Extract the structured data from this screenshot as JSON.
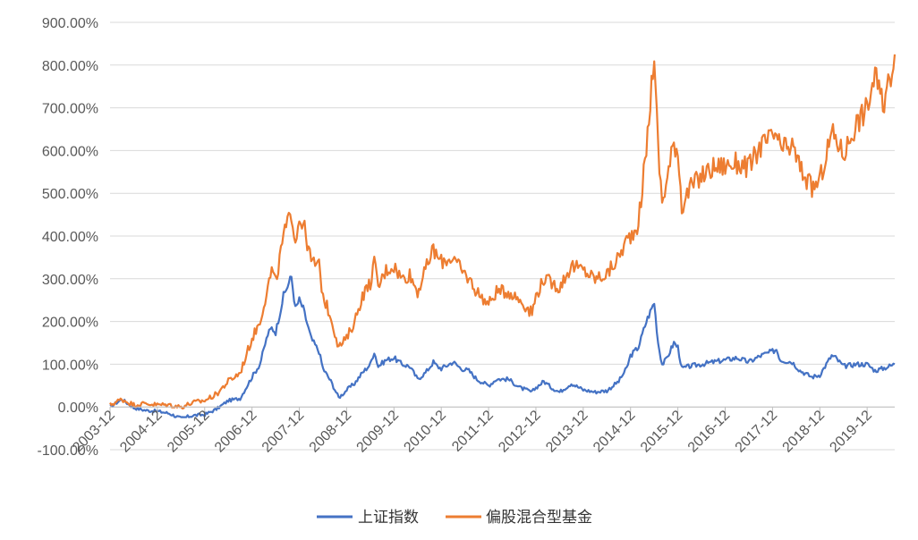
{
  "chart_data": {
    "type": "line",
    "title": "",
    "xlabel": "",
    "ylabel": "",
    "ylim": [
      -100,
      900
    ],
    "y_ticks": [
      "900.00%",
      "800.00%",
      "700.00%",
      "600.00%",
      "500.00%",
      "400.00%",
      "300.00%",
      "200.00%",
      "100.00%",
      "0.00%",
      "-100.00%"
    ],
    "x_ticks": [
      "2003-12",
      "2004-12",
      "2005-12",
      "2006-12",
      "2007-12",
      "2008-12",
      "2009-12",
      "2010-12",
      "2011-12",
      "2012-12",
      "2013-12",
      "2014-12",
      "2015-12",
      "2016-12",
      "2017-12",
      "2018-12",
      "2019-12"
    ],
    "x_range": [
      "2003-12",
      "2020-07"
    ],
    "grid": "horizontal",
    "legend_position": "bottom",
    "series": [
      {
        "name": "上证指数",
        "color": "#4472C4",
        "points": [
          [
            "2003-12",
            0
          ],
          [
            "2004-03",
            18
          ],
          [
            "2004-06",
            -2
          ],
          [
            "2004-09",
            -8
          ],
          [
            "2004-12",
            -10
          ],
          [
            "2005-03",
            -15
          ],
          [
            "2005-06",
            -27
          ],
          [
            "2005-09",
            -20
          ],
          [
            "2005-12",
            -18
          ],
          [
            "2006-03",
            -5
          ],
          [
            "2006-06",
            15
          ],
          [
            "2006-09",
            20
          ],
          [
            "2006-12",
            70
          ],
          [
            "2007-02",
            100
          ],
          [
            "2007-04",
            170
          ],
          [
            "2007-05",
            185
          ],
          [
            "2007-06",
            175
          ],
          [
            "2007-08",
            260
          ],
          [
            "2007-10",
            305
          ],
          [
            "2007-11",
            230
          ],
          [
            "2007-12",
            250
          ],
          [
            "2008-01",
            230
          ],
          [
            "2008-03",
            160
          ],
          [
            "2008-05",
            130
          ],
          [
            "2008-06",
            90
          ],
          [
            "2008-08",
            60
          ],
          [
            "2008-10",
            22
          ],
          [
            "2008-11",
            30
          ],
          [
            "2008-12",
            40
          ],
          [
            "2009-02",
            55
          ],
          [
            "2009-04",
            80
          ],
          [
            "2009-06",
            100
          ],
          [
            "2009-07",
            130
          ],
          [
            "2009-08",
            95
          ],
          [
            "2009-10",
            110
          ],
          [
            "2009-12",
            115
          ],
          [
            "2010-02",
            100
          ],
          [
            "2010-04",
            95
          ],
          [
            "2010-06",
            65
          ],
          [
            "2010-08",
            80
          ],
          [
            "2010-10",
            105
          ],
          [
            "2010-11",
            95
          ],
          [
            "2010-12",
            90
          ],
          [
            "2011-03",
            105
          ],
          [
            "2011-05",
            90
          ],
          [
            "2011-07",
            85
          ],
          [
            "2011-09",
            65
          ],
          [
            "2011-12",
            50
          ],
          [
            "2012-02",
            65
          ],
          [
            "2012-05",
            65
          ],
          [
            "2012-08",
            45
          ],
          [
            "2012-11",
            35
          ],
          [
            "2012-12",
            45
          ],
          [
            "2013-02",
            60
          ],
          [
            "2013-04",
            45
          ],
          [
            "2013-06",
            35
          ],
          [
            "2013-09",
            55
          ],
          [
            "2013-12",
            40
          ],
          [
            "2014-03",
            35
          ],
          [
            "2014-06",
            38
          ],
          [
            "2014-09",
            60
          ],
          [
            "2014-11",
            90
          ],
          [
            "2014-12",
            120
          ],
          [
            "2015-02",
            140
          ],
          [
            "2015-04",
            200
          ],
          [
            "2015-06",
            245
          ],
          [
            "2015-07",
            150
          ],
          [
            "2015-08",
            100
          ],
          [
            "2015-09",
            110
          ],
          [
            "2015-11",
            150
          ],
          [
            "2015-12",
            140
          ],
          [
            "2016-01",
            90
          ],
          [
            "2016-03",
            95
          ],
          [
            "2016-06",
            100
          ],
          [
            "2016-09",
            105
          ],
          [
            "2016-12",
            110
          ],
          [
            "2017-03",
            115
          ],
          [
            "2017-06",
            105
          ],
          [
            "2017-09",
            120
          ],
          [
            "2017-12",
            130
          ],
          [
            "2018-01",
            135
          ],
          [
            "2018-02",
            110
          ],
          [
            "2018-05",
            105
          ],
          [
            "2018-07",
            85
          ],
          [
            "2018-10",
            70
          ],
          [
            "2018-12",
            75
          ],
          [
            "2019-03",
            120
          ],
          [
            "2019-04",
            115
          ],
          [
            "2019-06",
            95
          ],
          [
            "2019-09",
            100
          ],
          [
            "2019-12",
            100
          ],
          [
            "2020-02",
            85
          ],
          [
            "2020-04",
            90
          ],
          [
            "2020-07",
            100
          ]
        ]
      },
      {
        "name": "偏股混合型基金",
        "color": "#ED7D31",
        "points": [
          [
            "2003-12",
            5
          ],
          [
            "2004-03",
            18
          ],
          [
            "2004-06",
            5
          ],
          [
            "2004-09",
            8
          ],
          [
            "2004-12",
            5
          ],
          [
            "2005-03",
            5
          ],
          [
            "2005-06",
            0
          ],
          [
            "2005-09",
            10
          ],
          [
            "2005-12",
            15
          ],
          [
            "2006-03",
            30
          ],
          [
            "2006-06",
            60
          ],
          [
            "2006-09",
            80
          ],
          [
            "2006-12",
            160
          ],
          [
            "2007-02",
            200
          ],
          [
            "2007-04",
            280
          ],
          [
            "2007-05",
            320
          ],
          [
            "2007-06",
            290
          ],
          [
            "2007-08",
            400
          ],
          [
            "2007-10",
            455
          ],
          [
            "2007-11",
            390
          ],
          [
            "2007-12",
            440
          ],
          [
            "2008-01",
            430
          ],
          [
            "2008-03",
            340
          ],
          [
            "2008-05",
            330
          ],
          [
            "2008-06",
            260
          ],
          [
            "2008-08",
            210
          ],
          [
            "2008-10",
            140
          ],
          [
            "2008-11",
            150
          ],
          [
            "2008-12",
            160
          ],
          [
            "2009-02",
            200
          ],
          [
            "2009-04",
            260
          ],
          [
            "2009-06",
            290
          ],
          [
            "2009-07",
            340
          ],
          [
            "2009-08",
            280
          ],
          [
            "2009-10",
            320
          ],
          [
            "2009-12",
            330
          ],
          [
            "2010-02",
            300
          ],
          [
            "2010-04",
            310
          ],
          [
            "2010-06",
            270
          ],
          [
            "2010-08",
            320
          ],
          [
            "2010-10",
            370
          ],
          [
            "2010-11",
            350
          ],
          [
            "2010-12",
            340
          ],
          [
            "2011-03",
            350
          ],
          [
            "2011-05",
            320
          ],
          [
            "2011-07",
            300
          ],
          [
            "2011-09",
            270
          ],
          [
            "2011-12",
            240
          ],
          [
            "2012-02",
            270
          ],
          [
            "2012-05",
            270
          ],
          [
            "2012-08",
            250
          ],
          [
            "2012-11",
            220
          ],
          [
            "2012-12",
            260
          ],
          [
            "2013-02",
            300
          ],
          [
            "2013-04",
            290
          ],
          [
            "2013-06",
            280
          ],
          [
            "2013-09",
            330
          ],
          [
            "2013-12",
            320
          ],
          [
            "2014-03",
            300
          ],
          [
            "2014-06",
            310
          ],
          [
            "2014-09",
            350
          ],
          [
            "2014-11",
            390
          ],
          [
            "2014-12",
            400
          ],
          [
            "2015-02",
            430
          ],
          [
            "2015-04",
            600
          ],
          [
            "2015-06",
            830
          ],
          [
            "2015-07",
            600
          ],
          [
            "2015-08",
            480
          ],
          [
            "2015-09",
            520
          ],
          [
            "2015-11",
            620
          ],
          [
            "2015-12",
            600
          ],
          [
            "2016-01",
            470
          ],
          [
            "2016-03",
            510
          ],
          [
            "2016-06",
            540
          ],
          [
            "2016-09",
            560
          ],
          [
            "2016-12",
            565
          ],
          [
            "2017-03",
            570
          ],
          [
            "2017-06",
            560
          ],
          [
            "2017-09",
            610
          ],
          [
            "2017-12",
            630
          ],
          [
            "2018-01",
            640
          ],
          [
            "2018-02",
            600
          ],
          [
            "2018-05",
            610
          ],
          [
            "2018-07",
            560
          ],
          [
            "2018-10",
            510
          ],
          [
            "2018-12",
            530
          ],
          [
            "2019-03",
            640
          ],
          [
            "2019-04",
            630
          ],
          [
            "2019-06",
            590
          ],
          [
            "2019-09",
            660
          ],
          [
            "2019-12",
            700
          ],
          [
            "2020-02",
            780
          ],
          [
            "2020-04",
            700
          ],
          [
            "2020-07",
            825
          ]
        ]
      }
    ]
  }
}
